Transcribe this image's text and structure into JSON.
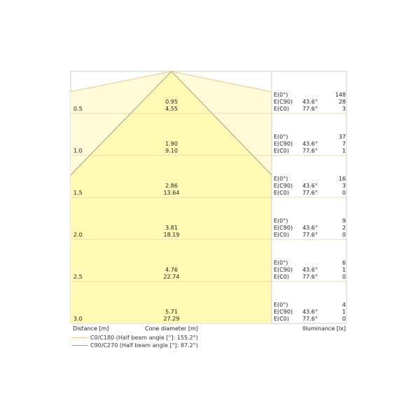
{
  "labels": {
    "distance": "Distance [m]",
    "cone": "Cone diameter [m]",
    "illuminance": "Illuminance [lx]"
  },
  "legend": [
    {
      "label": "C0/C180 (Half beam angle [°]: 155.2°)",
      "color": "#f5c48a"
    },
    {
      "label": "C90/C270 (Half beam angle [°]: 87.2°)",
      "color": "#a0a0a0"
    }
  ],
  "colors": {
    "outer_fill": "#fffbd9",
    "inner_fill": "#fff9b4",
    "grid": "#e6dfb0",
    "border": "#cccccc"
  },
  "rows": [
    {
      "distance": "0.5",
      "d1": "0.95",
      "d2": "4.55",
      "e0_label": "E(0°)",
      "e0": "148",
      "c90_label": "E(C90)",
      "c90_angle": "43.6°",
      "c90": "28",
      "c0_label": "E(C0)",
      "c0_angle": "77.6°",
      "c0": "3"
    },
    {
      "distance": "1.0",
      "d1": "1.90",
      "d2": "9.10",
      "e0_label": "E(0°)",
      "e0": "37",
      "c90_label": "E(C90)",
      "c90_angle": "43.6°",
      "c90": "7",
      "c0_label": "E(C0)",
      "c0_angle": "77.6°",
      "c0": "1"
    },
    {
      "distance": "1.5",
      "d1": "2.86",
      "d2": "13.64",
      "e0_label": "E(0°)",
      "e0": "16",
      "c90_label": "E(C90)",
      "c90_angle": "43.6°",
      "c90": "3",
      "c0_label": "E(C0)",
      "c0_angle": "77.6°",
      "c0": "0"
    },
    {
      "distance": "2.0",
      "d1": "3.81",
      "d2": "18.19",
      "e0_label": "E(0°)",
      "e0": "9",
      "c90_label": "E(C90)",
      "c90_angle": "43.6°",
      "c90": "2",
      "c0_label": "E(C0)",
      "c0_angle": "77.6°",
      "c0": "0"
    },
    {
      "distance": "2.5",
      "d1": "4.76",
      "d2": "22.74",
      "e0_label": "E(0°)",
      "e0": "6",
      "c90_label": "E(C90)",
      "c90_angle": "43.6°",
      "c90": "1",
      "c0_label": "E(C0)",
      "c0_angle": "77.6°",
      "c0": "0"
    },
    {
      "distance": "3.0",
      "d1": "5.71",
      "d2": "27.29",
      "e0_label": "E(0°)",
      "e0": "4",
      "c90_label": "E(C90)",
      "c90_angle": "43.6°",
      "c90": "1",
      "c0_label": "E(C0)",
      "c0_angle": "77.6°",
      "c0": "0"
    }
  ]
}
